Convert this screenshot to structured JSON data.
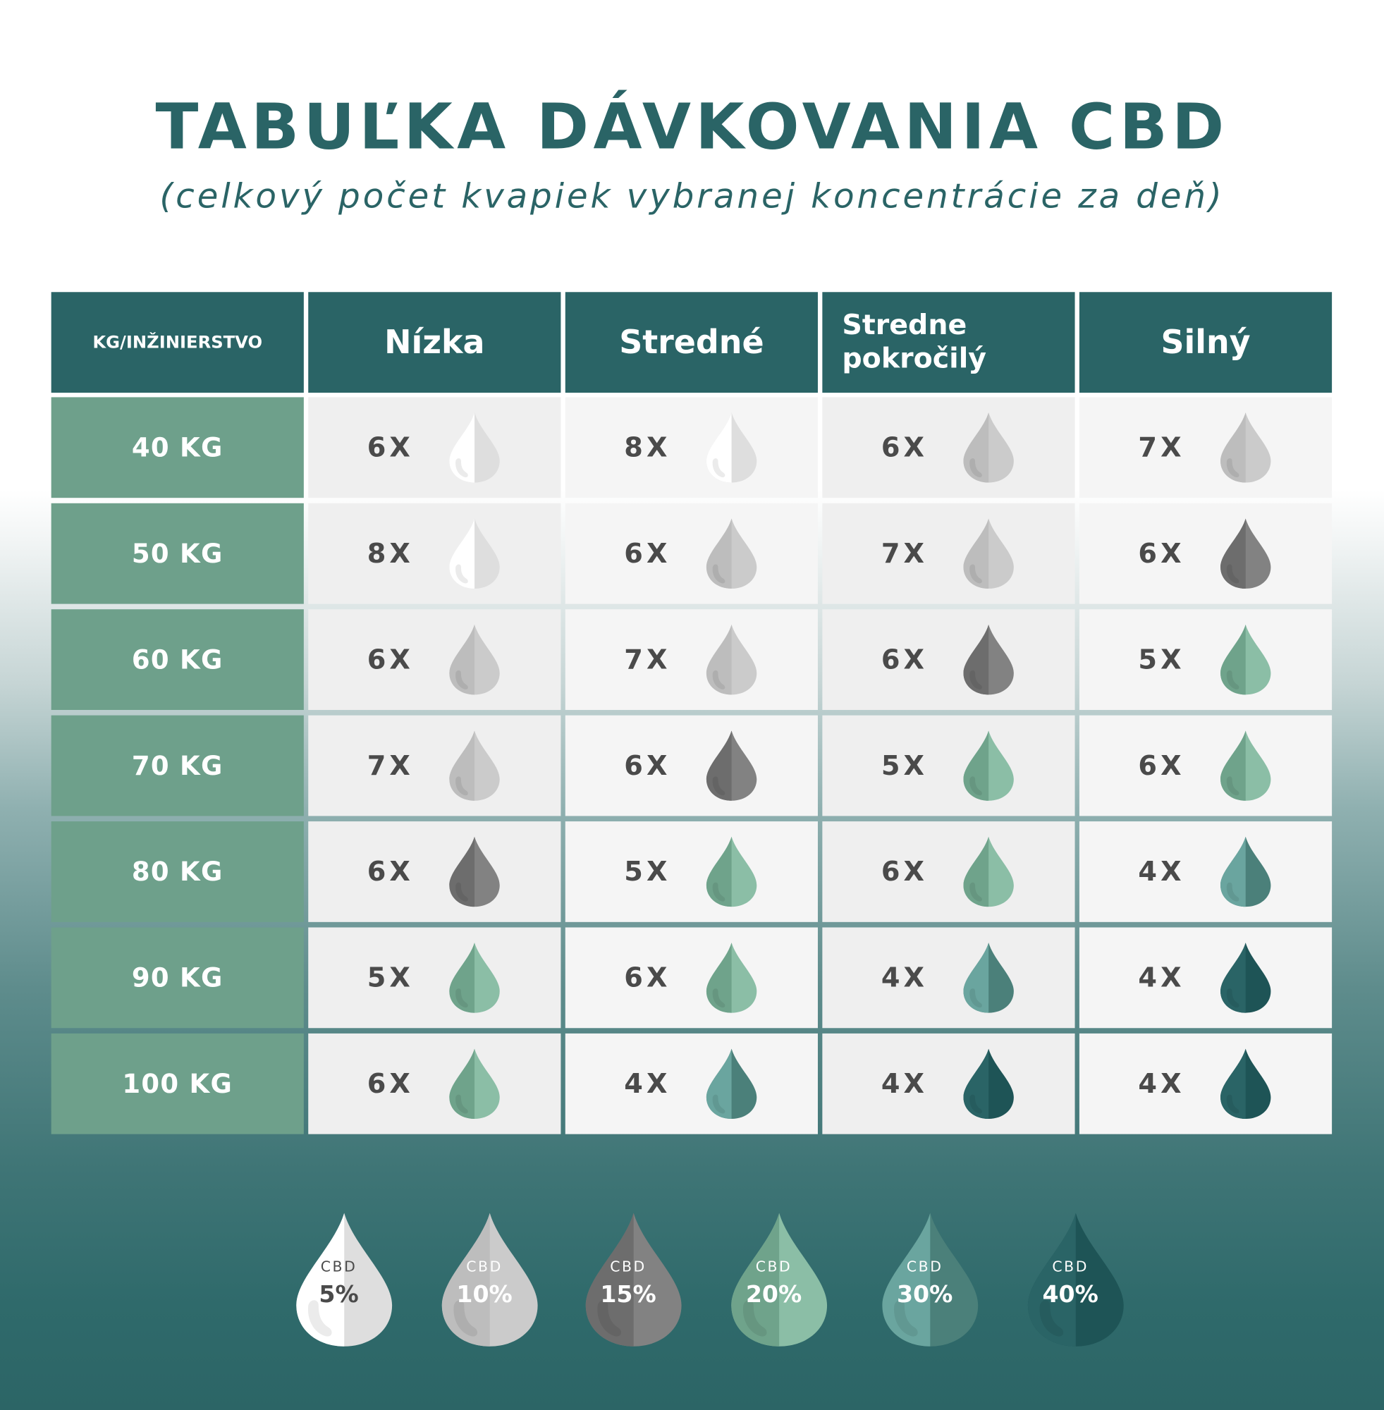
{
  "title": "TABUĽKA DÁVKOVANIA CBD",
  "subtitle": "(celkový počet kvapiek vybranej koncentrácie za deň)",
  "table": {
    "headers": [
      "KG/INŽINIERSTVO",
      "Nízka",
      "Stredné",
      "Stredne pokročilý",
      "Silný"
    ],
    "rows": [
      {
        "weight": "40 KG",
        "cells": [
          {
            "drops": "6X",
            "cbd": "5%"
          },
          {
            "drops": "8X",
            "cbd": "5%"
          },
          {
            "drops": "6X",
            "cbd": "10%"
          },
          {
            "drops": "7X",
            "cbd": "10%"
          }
        ]
      },
      {
        "weight": "50 KG",
        "cells": [
          {
            "drops": "8X",
            "cbd": "5%"
          },
          {
            "drops": "6X",
            "cbd": "10%"
          },
          {
            "drops": "7X",
            "cbd": "10%"
          },
          {
            "drops": "6X",
            "cbd": "15%"
          }
        ]
      },
      {
        "weight": "60 KG",
        "cells": [
          {
            "drops": "6X",
            "cbd": "10%"
          },
          {
            "drops": "7X",
            "cbd": "10%"
          },
          {
            "drops": "6X",
            "cbd": "15%"
          },
          {
            "drops": "5X",
            "cbd": "20%"
          }
        ]
      },
      {
        "weight": "70 KG",
        "cells": [
          {
            "drops": "7X",
            "cbd": "10%"
          },
          {
            "drops": "6X",
            "cbd": "15%"
          },
          {
            "drops": "5X",
            "cbd": "20%"
          },
          {
            "drops": "6X",
            "cbd": "20%"
          }
        ]
      },
      {
        "weight": "80 KG",
        "cells": [
          {
            "drops": "6X",
            "cbd": "15%"
          },
          {
            "drops": "5X",
            "cbd": "20%"
          },
          {
            "drops": "6X",
            "cbd": "20%"
          },
          {
            "drops": "4X",
            "cbd": "30%"
          }
        ]
      },
      {
        "weight": "90 KG",
        "cells": [
          {
            "drops": "5X",
            "cbd": "20%"
          },
          {
            "drops": "6X",
            "cbd": "20%"
          },
          {
            "drops": "4X",
            "cbd": "30%"
          },
          {
            "drops": "4X",
            "cbd": "40%"
          }
        ]
      },
      {
        "weight": "100 KG",
        "cells": [
          {
            "drops": "6X",
            "cbd": "20%"
          },
          {
            "drops": "4X",
            "cbd": "30%"
          },
          {
            "drops": "4X",
            "cbd": "40%"
          },
          {
            "drops": "4X",
            "cbd": "40%"
          }
        ]
      }
    ]
  },
  "legend": [
    {
      "label": "CBD",
      "value": "5%",
      "colors": [
        "#ffffff",
        "#dedede"
      ],
      "text_color": "#4a4a4a"
    },
    {
      "label": "CBD",
      "value": "10%",
      "colors": [
        "#bdbdbd",
        "#cbcbcb"
      ],
      "text_color": "#ffffff"
    },
    {
      "label": "CBD",
      "value": "15%",
      "colors": [
        "#6d6d6d",
        "#828282"
      ],
      "text_color": "#ffffff"
    },
    {
      "label": "CBD",
      "value": "20%",
      "colors": [
        "#6fa38b",
        "#8bbea6"
      ],
      "text_color": "#ffffff"
    },
    {
      "label": "CBD",
      "value": "30%",
      "colors": [
        "#6aa59f",
        "#4b807a"
      ],
      "text_color": "#ffffff"
    },
    {
      "label": "CBD",
      "value": "40%",
      "colors": [
        "#2a6466",
        "#1e5456"
      ],
      "text_color": "#ffffff"
    }
  ]
}
